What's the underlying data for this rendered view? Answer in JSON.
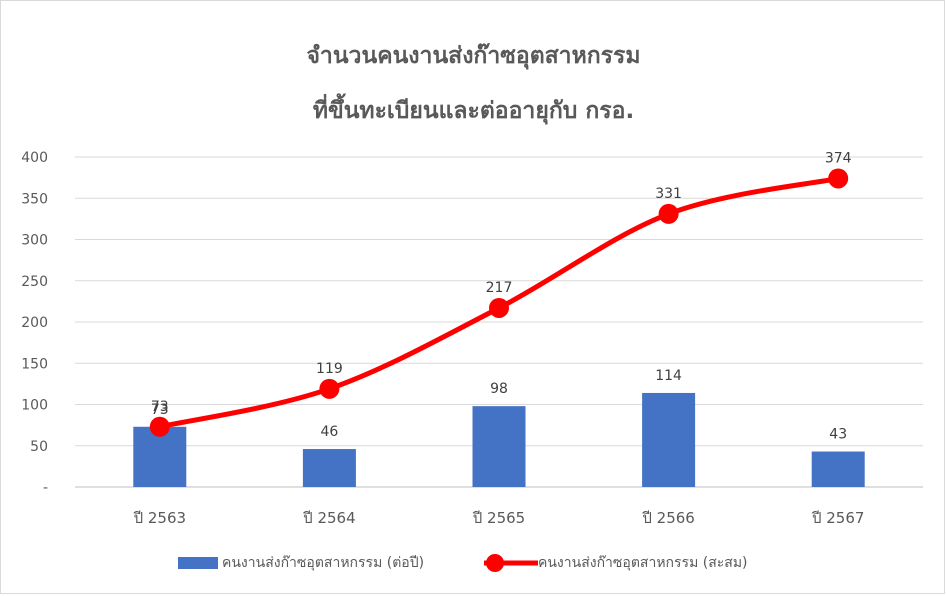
{
  "chart_data": {
    "type": "bar+line",
    "title_lines": [
      "จำนวนคนงานส่งก๊าซอุตสาหกรรม",
      "ที่ขึ้นทะเบียนและต่ออายุกับ  กรอ."
    ],
    "categories": [
      "ปี 2563",
      "ปี 2564",
      "ปี 2565",
      "ปี 2566",
      "ปี 2567"
    ],
    "series": [
      {
        "name": "คนงานส่งก๊าซอุตสาหกรรม (ต่อปี)",
        "type": "bar",
        "color": "#4472c4",
        "values": [
          73,
          46,
          98,
          114,
          43
        ]
      },
      {
        "name": "คนงานส่งก๊าซอุตสาหกรรม (สะสม)",
        "type": "line",
        "color": "#ff0000",
        "values": [
          73,
          119,
          217,
          331,
          374
        ]
      }
    ],
    "ylim": [
      0,
      400
    ],
    "yticks": [
      {
        "value": 0,
        "label": "-"
      },
      {
        "value": 50,
        "label": "50"
      },
      {
        "value": 100,
        "label": "100"
      },
      {
        "value": 150,
        "label": "150"
      },
      {
        "value": 200,
        "label": "200"
      },
      {
        "value": 250,
        "label": "250"
      },
      {
        "value": 300,
        "label": "300"
      },
      {
        "value": 350,
        "label": "350"
      },
      {
        "value": 400,
        "label": "400"
      }
    ],
    "grid": true,
    "legend": "bottom"
  }
}
